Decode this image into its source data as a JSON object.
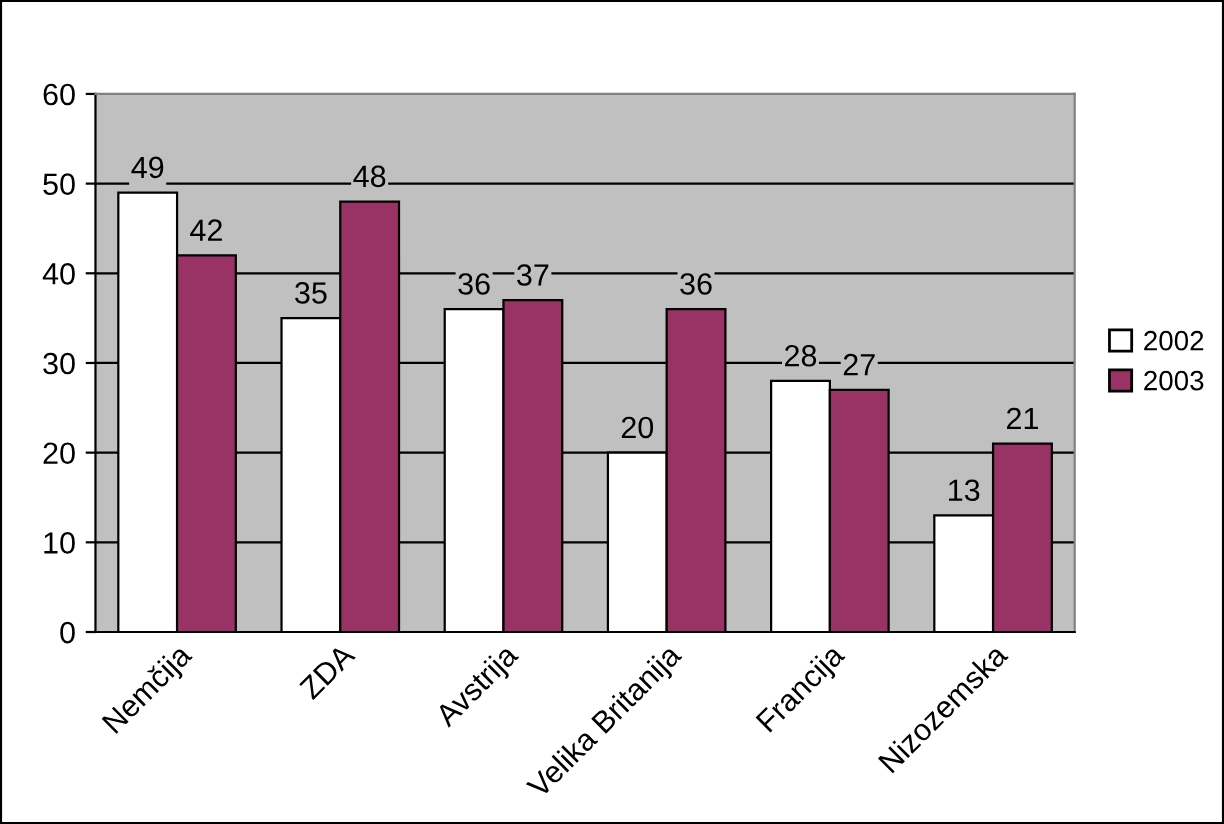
{
  "chart_data": {
    "type": "bar",
    "categories": [
      "Nemčija",
      "ZDA",
      "Avstrija",
      "Velika Britanija",
      "Francija",
      "Nizozemska"
    ],
    "series": [
      {
        "name": "2002",
        "color": "#ffffff",
        "values": [
          49,
          35,
          36,
          20,
          28,
          13
        ]
      },
      {
        "name": "2003",
        "color": "#993366",
        "values": [
          42,
          48,
          37,
          36,
          27,
          21
        ]
      }
    ],
    "ylim": [
      0,
      60
    ],
    "yticks": [
      0,
      10,
      20,
      30,
      40,
      50,
      60
    ],
    "grid": "y",
    "legend": "right",
    "data_labels": true
  }
}
